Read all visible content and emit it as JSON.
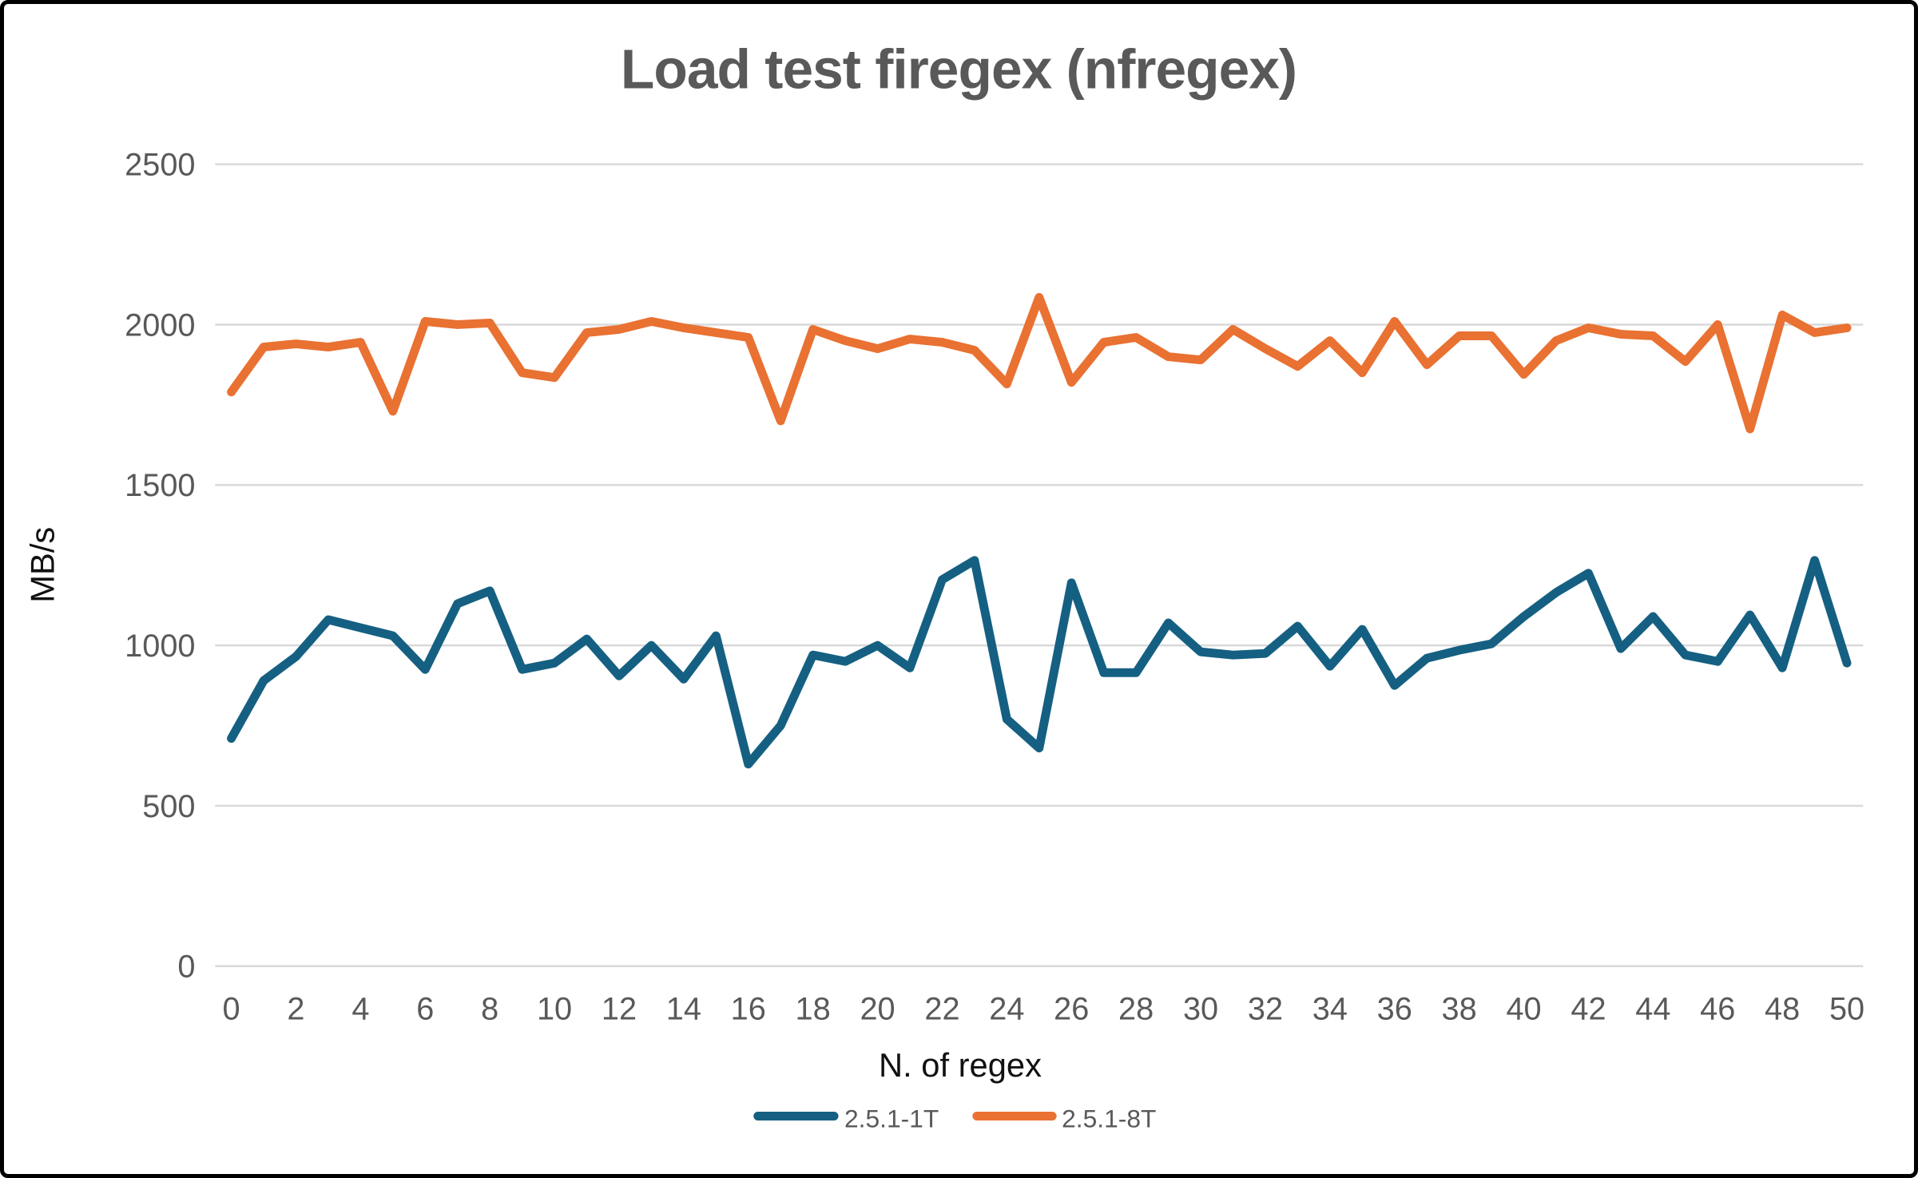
{
  "chart": {
    "title": "Load test firegex (nfregex)",
    "xlabel": "N. of regex",
    "ylabel": "MB/s"
  },
  "colors": {
    "series1": "#156082",
    "series2": "#E97132",
    "gridline": "#D9D9D9",
    "tick_text": "#595959",
    "axis_title_text": "#111111",
    "title_text": "#595959",
    "border": "#000000",
    "background": "#FFFFFF"
  },
  "chart_data": {
    "type": "line",
    "title": "Load test firegex (nfregex)",
    "xlabel": "N. of regex",
    "ylabel": "MB/s",
    "x": [
      0,
      1,
      2,
      3,
      4,
      5,
      6,
      7,
      8,
      9,
      10,
      11,
      12,
      13,
      14,
      15,
      16,
      17,
      18,
      19,
      20,
      21,
      22,
      23,
      24,
      25,
      26,
      27,
      28,
      29,
      30,
      31,
      32,
      33,
      34,
      35,
      36,
      37,
      38,
      39,
      40,
      41,
      42,
      43,
      44,
      45,
      46,
      47,
      48,
      49,
      50
    ],
    "x_tick_step": 2,
    "ylim": [
      0,
      2500
    ],
    "y_ticks": [
      0,
      500,
      1000,
      1500,
      2000,
      2500
    ],
    "grid": true,
    "legend_position": "bottom",
    "series": [
      {
        "name": "2.5.1-1T",
        "color": "#156082",
        "values": [
          710,
          890,
          965,
          1080,
          1055,
          1030,
          925,
          1130,
          1170,
          925,
          945,
          1020,
          905,
          1000,
          895,
          1030,
          630,
          750,
          970,
          950,
          1000,
          930,
          1205,
          1265,
          770,
          680,
          1195,
          915,
          915,
          1070,
          980,
          970,
          975,
          1060,
          935,
          1050,
          875,
          960,
          985,
          1005,
          1090,
          1165,
          1225,
          990,
          1090,
          970,
          950,
          1095,
          930,
          1265,
          945
        ]
      },
      {
        "name": "2.5.1-8T",
        "color": "#E97132",
        "values": [
          1790,
          1930,
          1940,
          1930,
          1945,
          1730,
          2010,
          2000,
          2005,
          1850,
          1835,
          1975,
          1985,
          2010,
          1990,
          1975,
          1960,
          1700,
          1985,
          1950,
          1925,
          1955,
          1945,
          1920,
          1815,
          2085,
          1820,
          1945,
          1960,
          1900,
          1890,
          1985,
          1925,
          1870,
          1950,
          1850,
          2010,
          1875,
          1965,
          1965,
          1845,
          1950,
          1990,
          1970,
          1965,
          1885,
          2000,
          1675,
          2030,
          1975,
          1990
        ]
      }
    ]
  }
}
